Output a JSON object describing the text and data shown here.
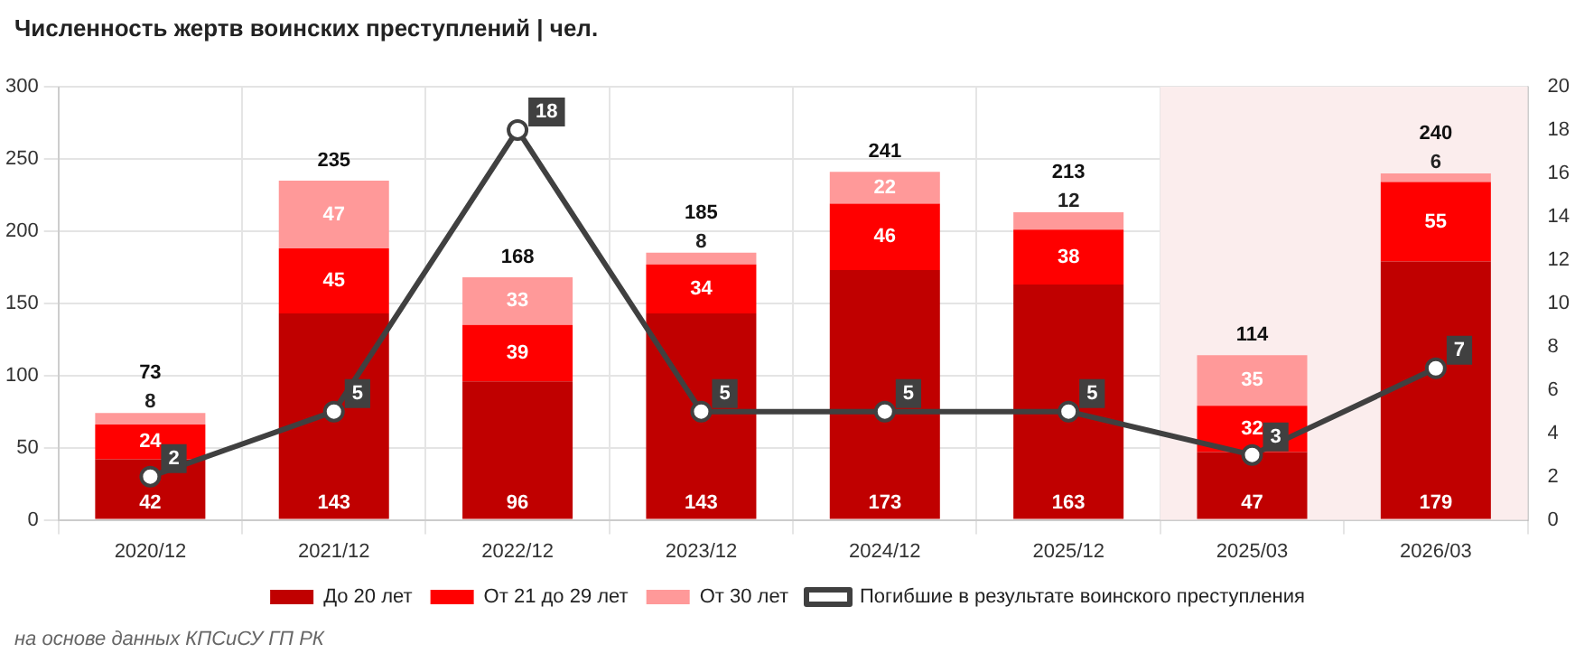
{
  "chart_data": {
    "type": "bar",
    "title": "Численность жертв воинских преступлений | чел.",
    "categories": [
      "2020/12",
      "2021/12",
      "2022/12",
      "2023/12",
      "2024/12",
      "2025/12",
      "2025/03",
      "2026/03"
    ],
    "stacked": true,
    "series": [
      {
        "name": "До 20 лет",
        "color": "#c00000",
        "values": [
          42,
          143,
          96,
          143,
          173,
          163,
          47,
          179
        ]
      },
      {
        "name": "От 21 до 29 лет",
        "color": "#ff0000",
        "values": [
          24,
          45,
          39,
          34,
          46,
          38,
          32,
          55
        ]
      },
      {
        "name": "От 30 лет",
        "color": "#ff9999",
        "values": [
          8,
          47,
          33,
          8,
          22,
          12,
          35,
          6
        ]
      },
      {
        "name": "Погибшие в результате воинского преступления",
        "type": "line",
        "axis": "y2",
        "color": "#404040",
        "values": [
          2,
          5,
          18,
          5,
          5,
          5,
          3,
          7
        ]
      }
    ],
    "totals": [
      "73",
      "235",
      "168",
      "185",
      "241",
      "213",
      "114",
      "240"
    ],
    "data_labels": true,
    "ylim": [
      0,
      300
    ],
    "yticks": [
      0,
      50,
      100,
      150,
      200,
      250,
      300
    ],
    "y2lim": [
      0,
      20
    ],
    "y2ticks": [
      0,
      2,
      4,
      6,
      8,
      10,
      12,
      14,
      16,
      18,
      20
    ],
    "bands": [
      {
        "axis": "x",
        "from": "2025/03",
        "to": "2026/03",
        "color": "#fbeded"
      }
    ],
    "grid": true,
    "legend": "bottom",
    "marker": "circle",
    "line_style": "solid",
    "annotations": [
      "на основе данных КПСиСУ ГП РК"
    ]
  }
}
